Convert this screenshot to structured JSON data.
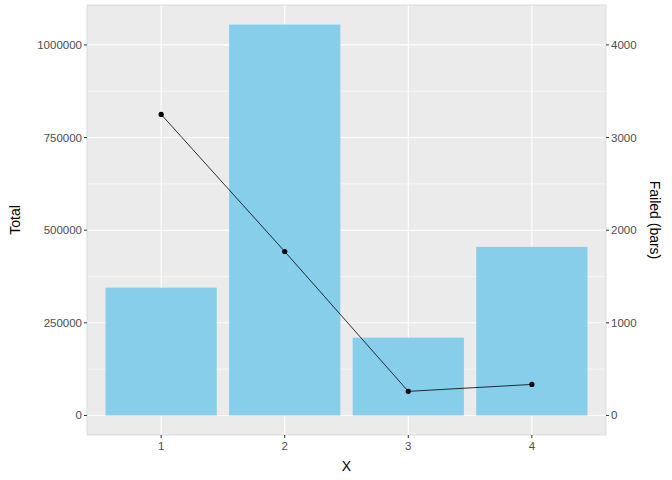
{
  "chart_data": {
    "type": "bar",
    "x_label": "X",
    "y_label": "Total",
    "y2_label": "Failed (bars)",
    "categories": [
      "1",
      "2",
      "3",
      "4"
    ],
    "series": [
      {
        "type": "bar",
        "color": "#87CEEB",
        "values": [
          345000,
          1055000,
          210000,
          455000
        ]
      },
      {
        "type": "line",
        "axis": "y2",
        "color": "#000000",
        "marker": "circle",
        "values": [
          3250,
          1770,
          260,
          335
        ]
      }
    ],
    "ylim": [
      -52750,
      1107750
    ],
    "yticks": [
      0,
      250000,
      500000,
      750000,
      1000000
    ],
    "y2lim": [
      -211,
      4431
    ],
    "y2ticks": [
      0,
      1000,
      2000,
      3000,
      4000
    ],
    "grid": true
  }
}
